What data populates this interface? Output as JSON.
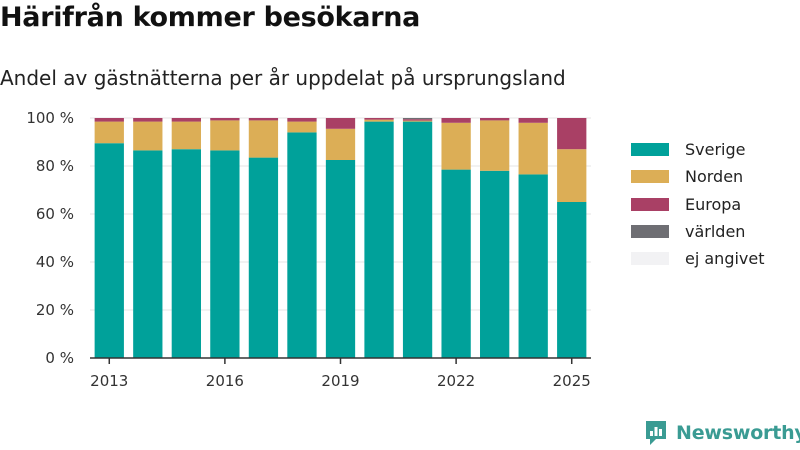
{
  "title": "Härifrån kommer besökarna",
  "subtitle": "Andel av gästnätterna per år uppdelat på ursprungsland",
  "brand": "Newsworthy",
  "chart_data": {
    "type": "bar",
    "stacked": true,
    "categories": [
      "2013",
      "2014",
      "2015",
      "2016",
      "2017",
      "2018",
      "2019",
      "2020",
      "2021",
      "2022",
      "2023",
      "2024",
      "2025"
    ],
    "x_tick_labels": [
      "2013",
      "2016",
      "2019",
      "2022",
      "2025"
    ],
    "y_ticks": [
      0,
      20,
      40,
      60,
      80,
      100
    ],
    "y_tick_labels": [
      "0 %",
      "20 %",
      "40 %",
      "60 %",
      "80 %",
      "100 %"
    ],
    "ylim": [
      0,
      100
    ],
    "grid": "horizontal",
    "legend_position": "right",
    "series": [
      {
        "name": "Sverige",
        "color": "#00a19a",
        "values": [
          89.5,
          86.5,
          87,
          86.5,
          83.5,
          94,
          82.5,
          98.5,
          98.5,
          78.5,
          78,
          76.5,
          65
        ]
      },
      {
        "name": "Norden",
        "color": "#dcae56",
        "values": [
          9,
          12,
          11.5,
          12.5,
          15.5,
          4.5,
          13,
          0.8,
          0.4,
          19.5,
          21,
          21.5,
          22
        ]
      },
      {
        "name": "Europa",
        "color": "#a94065",
        "values": [
          1.5,
          1.5,
          1.5,
          1,
          1,
          1.5,
          4.5,
          0.7,
          0.6,
          2,
          1,
          2,
          13
        ]
      },
      {
        "name": "världen",
        "color": "#6e6e73",
        "values": [
          0,
          0,
          0,
          0,
          0,
          0,
          0,
          0,
          0.5,
          0,
          0,
          0,
          0
        ]
      },
      {
        "name": "ej angivet",
        "color": "#f2f2f4",
        "values": [
          0,
          0,
          0,
          0,
          0,
          0,
          0,
          0,
          0,
          0,
          0,
          0,
          0
        ]
      }
    ]
  }
}
